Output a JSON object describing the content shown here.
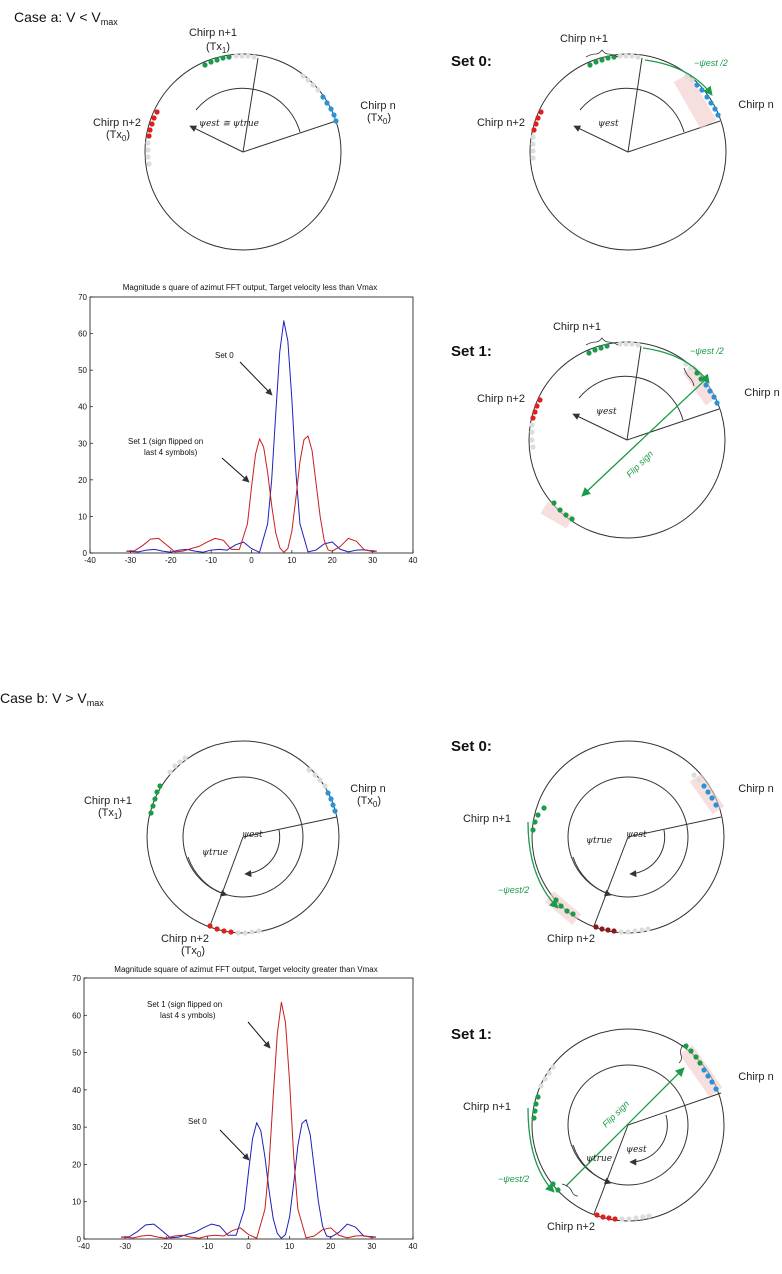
{
  "case_a": {
    "heading": "Case a: V < V",
    "heading_sub": "max",
    "left": {
      "chirp_top": "Chirp n+1",
      "chirp_top_tx": "(Tx",
      "chirp_top_tx_sub": "1",
      "close": ")",
      "chirp_right": "Chirp n",
      "chirp_right_tx": "(Tx",
      "chirp_right_tx_sub": "0",
      "chirp_left": "Chirp n+2",
      "chirp_left_tx": "(Tx",
      "chirp_left_tx_sub": "0",
      "angle_label": "ψest ≅ ψtrue"
    },
    "set0": {
      "label": "Set 0:",
      "chirp_top": "Chirp n+1",
      "chirp_right": "Chirp n",
      "chirp_left": "Chirp n+2",
      "angle": "ψest",
      "green_label": "−ψest /2"
    },
    "set1": {
      "label": "Set 1:",
      "chirp_top": "Chirp n+1",
      "chirp_right": "Chirp n",
      "chirp_left": "Chirp n+2",
      "angle": "ψest",
      "green_label": "−ψest /2",
      "flip_label": "Flip sign"
    }
  },
  "case_b": {
    "heading": "Case b: V > V",
    "heading_sub": "max",
    "left": {
      "chirp_right": "Chirp n",
      "chirp_right_tx": "(Tx",
      "chirp_right_tx_sub": "0",
      "chirp_left": "Chirp n+1",
      "chirp_left_tx": "(Tx",
      "chirp_left_tx_sub": "1",
      "chirp_bottom": "Chirp n+2",
      "chirp_bottom_tx": "(Tx",
      "chirp_bottom_tx_sub": "0",
      "close": ")",
      "angle_true": "ψtrue",
      "angle_est": "ψest"
    },
    "set0": {
      "label": "Set 0:",
      "chirp_right": "Chirp n",
      "chirp_left": "Chirp n+1",
      "chirp_bottom": "Chirp n+2",
      "angle_true": "ψtrue",
      "angle_est": "ψest",
      "green_label": "−ψest/2"
    },
    "set1": {
      "label": "Set 1:",
      "chirp_right": "Chirp n",
      "chirp_left": "Chirp n+1",
      "chirp_bottom": "Chirp n+2",
      "angle_true": "ψtrue",
      "angle_est": "ψest",
      "green_label": "−ψest/2",
      "flip_label": "Flip sign"
    }
  },
  "chart_data": [
    {
      "type": "line",
      "title": "Magnitude s quare of azimut FFT output,  Target velocity less  than Vmax",
      "xlim": [
        -40,
        40
      ],
      "ylim": [
        0,
        70
      ],
      "xticks": [
        -40,
        -30,
        -20,
        -10,
        0,
        10,
        20,
        30,
        40
      ],
      "yticks": [
        0,
        10,
        20,
        30,
        40,
        50,
        60,
        70
      ],
      "annotations": [
        "Set 0",
        "Set 1 (sign flipped on",
        "last 4 symbols)"
      ],
      "series": [
        {
          "name": "Set 0",
          "color": "#1f1fbf",
          "x": [
            -31,
            -28,
            -26,
            -24,
            -22,
            -20,
            -18,
            -16,
            -14,
            -12,
            -10,
            -8,
            -6,
            -4,
            -2,
            0,
            2,
            4,
            5,
            6,
            7,
            8,
            9,
            10,
            11,
            12,
            14,
            16,
            18,
            20,
            22,
            24,
            26,
            28,
            30,
            31
          ],
          "y": [
            0.5,
            0.3,
            0.8,
            1.0,
            0.5,
            0.2,
            0.8,
            1.0,
            0.5,
            0.2,
            0.8,
            1.0,
            0.8,
            2.2,
            3.0,
            1.2,
            0.2,
            8,
            20,
            38,
            55,
            63.5,
            58,
            42,
            22,
            8,
            0.3,
            0.8,
            2.5,
            3.0,
            1.0,
            0.3,
            0.8,
            0.9,
            0.4,
            0.5
          ]
        },
        {
          "name": "Set 1 (sign flipped on last 4 symbols)",
          "color": "#c81e1e",
          "x": [
            -31,
            -29,
            -27,
            -25,
            -23,
            -21,
            -19,
            -17,
            -15,
            -13,
            -11,
            -9,
            -7,
            -5,
            -3,
            -1,
            0,
            1,
            2,
            3,
            4,
            5,
            6,
            7,
            8,
            9,
            10,
            11,
            12,
            13,
            14,
            15,
            16,
            17,
            18,
            19,
            20,
            22,
            24,
            26,
            28,
            30,
            31
          ],
          "y": [
            0.5,
            0.6,
            2.0,
            3.8,
            4.0,
            2.2,
            0.3,
            0.5,
            1.2,
            1.8,
            3.0,
            4.0,
            3.5,
            1.0,
            1.0,
            8,
            18,
            27,
            31.2,
            29,
            22,
            13,
            5.5,
            1.5,
            0.2,
            1.2,
            6,
            15,
            25,
            31,
            32,
            28,
            19,
            10,
            3.5,
            0.8,
            0.5,
            1.8,
            4.0,
            3.2,
            0.8,
            0.6,
            0.5
          ]
        }
      ]
    },
    {
      "type": "line",
      "title": "Magnitude square of azimut FFT output,  Target velocity greater than Vmax",
      "xlim": [
        -40,
        40
      ],
      "ylim": [
        0,
        70
      ],
      "xticks": [
        -40,
        -30,
        -20,
        -10,
        0,
        10,
        20,
        30,
        40
      ],
      "yticks": [
        0,
        10,
        20,
        30,
        40,
        50,
        60,
        70
      ],
      "annotations": [
        "Set 1 (sign flipped on",
        "last 4 s ymbols)",
        "Set 0"
      ],
      "series": [
        {
          "name": "Set 0",
          "color": "#1f1fbf",
          "x": [
            -31,
            -29,
            -27,
            -25,
            -23,
            -21,
            -19,
            -17,
            -15,
            -13,
            -11,
            -9,
            -7,
            -5,
            -3,
            -1,
            0,
            1,
            2,
            3,
            4,
            5,
            6,
            7,
            8,
            9,
            10,
            11,
            12,
            13,
            14,
            15,
            16,
            17,
            18,
            19,
            20,
            22,
            24,
            26,
            28,
            30,
            31
          ],
          "y": [
            0.5,
            0.6,
            2.0,
            3.8,
            4.0,
            2.2,
            0.3,
            0.5,
            1.2,
            1.8,
            3.0,
            4.0,
            3.5,
            1.0,
            1.0,
            8,
            18,
            27,
            31.2,
            29,
            22,
            13,
            5.5,
            1.5,
            0.2,
            1.2,
            6,
            15,
            25,
            31,
            32,
            28,
            19,
            10,
            3.5,
            0.8,
            0.5,
            1.8,
            4.0,
            3.2,
            0.8,
            0.6,
            0.5
          ]
        },
        {
          "name": "Set 1 (sign flipped on last 4 symbols)",
          "color": "#c81e1e",
          "x": [
            -31,
            -28,
            -26,
            -24,
            -22,
            -20,
            -18,
            -16,
            -14,
            -12,
            -10,
            -8,
            -6,
            -4,
            -2,
            0,
            2,
            4,
            5,
            6,
            7,
            8,
            9,
            10,
            11,
            12,
            14,
            16,
            18,
            20,
            22,
            24,
            26,
            28,
            30,
            31
          ],
          "y": [
            0.5,
            0.3,
            0.8,
            1.0,
            0.5,
            0.2,
            0.8,
            1.0,
            0.5,
            0.2,
            0.8,
            1.0,
            0.8,
            2.2,
            3.0,
            1.2,
            0.2,
            8,
            20,
            38,
            55,
            63.5,
            58,
            42,
            22,
            8,
            0.3,
            0.8,
            2.5,
            3.0,
            1.0,
            0.3,
            0.8,
            0.9,
            0.4,
            0.5
          ]
        }
      ]
    }
  ]
}
